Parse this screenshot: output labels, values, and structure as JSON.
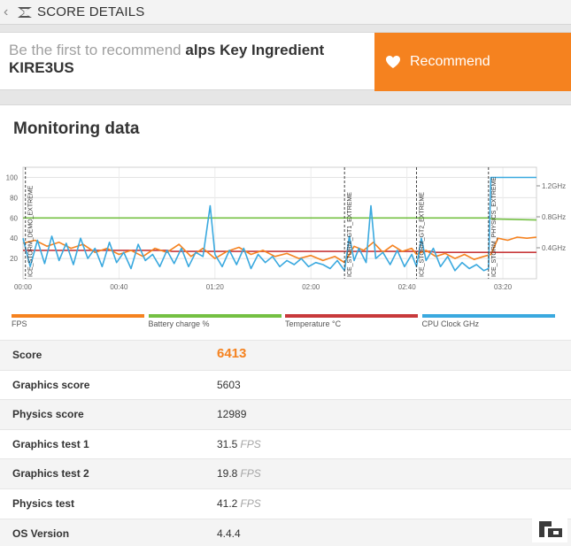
{
  "header": {
    "title": "SCORE DETAILS",
    "back_icon": "chevron-left-icon",
    "logo_icon": "3dmark-logo-icon"
  },
  "recommend": {
    "prefix": "Be the first to recommend",
    "device": "alps Key Ingredient KIRE3US",
    "button_label": "Recommend",
    "button_icon": "heart-icon",
    "accent": "#f5821f"
  },
  "monitoring": {
    "title": "Monitoring data",
    "legend": [
      {
        "label": "FPS",
        "color": "#f5821f"
      },
      {
        "label": "Battery charge %",
        "color": "#74c043"
      },
      {
        "label": "Temperature °C",
        "color": "#c8393b"
      },
      {
        "label": "CPU Clock GHz",
        "color": "#3aa9df"
      }
    ]
  },
  "chart_data": {
    "type": "line",
    "x_ticks": [
      "00:00",
      "00:40",
      "01:20",
      "02:00",
      "02:40",
      "03:20"
    ],
    "y_ticks_left": [
      "100",
      "80",
      "60",
      "40",
      "20"
    ],
    "y_ticks_right": [
      "1.2GHz",
      "0.8GHz",
      "0.4GHz"
    ],
    "ylim": [
      0,
      110
    ],
    "xlim_seconds": [
      0,
      214
    ],
    "right_ylim_ghz": [
      0,
      1.44
    ],
    "grid": true,
    "section_markers": [
      {
        "label": "ICE_STORM_DEMO_EXTREME",
        "t": 1
      },
      {
        "label": "ICE_STORM_GT1_EXTREME",
        "t": 134
      },
      {
        "label": "ICE_STORM_GT2_EXTREME",
        "t": 164
      },
      {
        "label": "ICE_STORM_PHYSICS_EXTREME",
        "t": 194
      }
    ],
    "series": [
      {
        "name": "Battery charge %",
        "color": "#74c043",
        "points": [
          [
            0,
            60
          ],
          [
            194,
            60
          ],
          [
            196,
            59
          ],
          [
            214,
            58
          ]
        ]
      },
      {
        "name": "Temperature °C",
        "color": "#c8393b",
        "points": [
          [
            0,
            28
          ],
          [
            60,
            28
          ],
          [
            62,
            27
          ],
          [
            170,
            27
          ],
          [
            172,
            26
          ],
          [
            214,
            26
          ]
        ]
      },
      {
        "name": "FPS",
        "color": "#f5821f",
        "points": [
          [
            0,
            35
          ],
          [
            5,
            38
          ],
          [
            10,
            32
          ],
          [
            15,
            36
          ],
          [
            20,
            30
          ],
          [
            25,
            34
          ],
          [
            30,
            26
          ],
          [
            35,
            30
          ],
          [
            40,
            24
          ],
          [
            45,
            28
          ],
          [
            50,
            22
          ],
          [
            55,
            30
          ],
          [
            60,
            26
          ],
          [
            65,
            34
          ],
          [
            70,
            22
          ],
          [
            75,
            30
          ],
          [
            80,
            20
          ],
          [
            85,
            27
          ],
          [
            90,
            31
          ],
          [
            95,
            24
          ],
          [
            100,
            28
          ],
          [
            105,
            22
          ],
          [
            110,
            25
          ],
          [
            115,
            20
          ],
          [
            120,
            23
          ],
          [
            125,
            18
          ],
          [
            130,
            22
          ],
          [
            134,
            16
          ],
          [
            138,
            32
          ],
          [
            142,
            28
          ],
          [
            146,
            36
          ],
          [
            150,
            26
          ],
          [
            154,
            33
          ],
          [
            158,
            27
          ],
          [
            162,
            30
          ],
          [
            164,
            24
          ],
          [
            168,
            28
          ],
          [
            172,
            22
          ],
          [
            176,
            25
          ],
          [
            180,
            20
          ],
          [
            184,
            24
          ],
          [
            188,
            19
          ],
          [
            192,
            22
          ],
          [
            195,
            24
          ],
          [
            198,
            40
          ],
          [
            202,
            38
          ],
          [
            206,
            41
          ],
          [
            210,
            40
          ],
          [
            214,
            41
          ]
        ]
      },
      {
        "name": "CPU Clock GHz",
        "color": "#3aa9df",
        "points": [
          [
            0,
            40
          ],
          [
            3,
            12
          ],
          [
            6,
            38
          ],
          [
            9,
            15
          ],
          [
            12,
            42
          ],
          [
            15,
            18
          ],
          [
            18,
            35
          ],
          [
            21,
            14
          ],
          [
            24,
            40
          ],
          [
            27,
            20
          ],
          [
            30,
            30
          ],
          [
            33,
            12
          ],
          [
            36,
            36
          ],
          [
            39,
            16
          ],
          [
            42,
            26
          ],
          [
            45,
            10
          ],
          [
            48,
            34
          ],
          [
            51,
            18
          ],
          [
            54,
            24
          ],
          [
            57,
            12
          ],
          [
            60,
            28
          ],
          [
            63,
            15
          ],
          [
            66,
            30
          ],
          [
            69,
            12
          ],
          [
            72,
            26
          ],
          [
            75,
            22
          ],
          [
            78,
            72
          ],
          [
            80,
            24
          ],
          [
            83,
            12
          ],
          [
            86,
            28
          ],
          [
            89,
            14
          ],
          [
            92,
            30
          ],
          [
            95,
            10
          ],
          [
            98,
            24
          ],
          [
            101,
            16
          ],
          [
            104,
            22
          ],
          [
            107,
            12
          ],
          [
            110,
            18
          ],
          [
            113,
            14
          ],
          [
            116,
            20
          ],
          [
            119,
            12
          ],
          [
            122,
            16
          ],
          [
            125,
            14
          ],
          [
            128,
            10
          ],
          [
            131,
            18
          ],
          [
            134,
            8
          ],
          [
            136,
            42
          ],
          [
            138,
            18
          ],
          [
            140,
            30
          ],
          [
            143,
            16
          ],
          [
            145,
            72
          ],
          [
            147,
            20
          ],
          [
            150,
            26
          ],
          [
            153,
            14
          ],
          [
            156,
            28
          ],
          [
            159,
            12
          ],
          [
            162,
            24
          ],
          [
            164,
            12
          ],
          [
            166,
            40
          ],
          [
            168,
            18
          ],
          [
            171,
            30
          ],
          [
            174,
            12
          ],
          [
            177,
            22
          ],
          [
            180,
            8
          ],
          [
            183,
            16
          ],
          [
            186,
            10
          ],
          [
            189,
            14
          ],
          [
            192,
            8
          ],
          [
            194,
            10
          ],
          [
            195,
            100
          ],
          [
            214,
            100
          ]
        ]
      }
    ]
  },
  "stats": [
    {
      "key": "Score",
      "value": "6413",
      "unit": ""
    },
    {
      "key": "Graphics score",
      "value": "5603",
      "unit": ""
    },
    {
      "key": "Physics score",
      "value": "12989",
      "unit": ""
    },
    {
      "key": "Graphics test 1",
      "value": "31.5",
      "unit": "FPS"
    },
    {
      "key": "Graphics test 2",
      "value": "19.8",
      "unit": "FPS"
    },
    {
      "key": "Physics test",
      "value": "41.2",
      "unit": "FPS"
    },
    {
      "key": "OS Version",
      "value": "4.4.4",
      "unit": ""
    }
  ]
}
